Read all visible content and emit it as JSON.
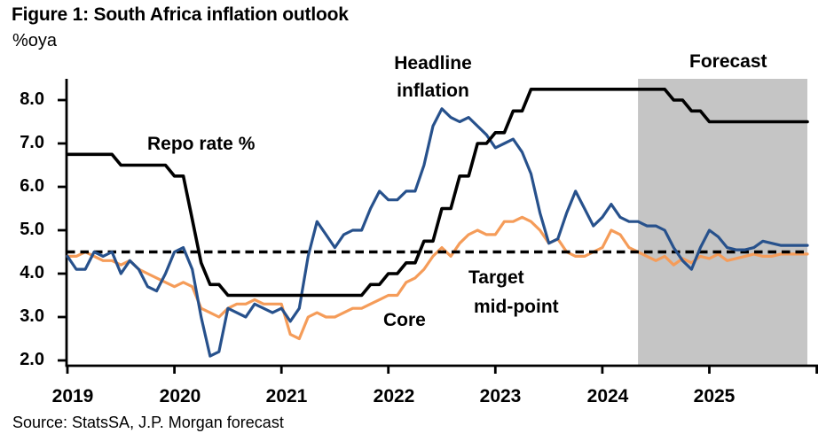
{
  "figure": {
    "title": "Figure 1: South Africa inflation outlook",
    "unit_label": "%oya",
    "source": "Source: StatsSA, J.P. Morgan forecast"
  },
  "chart_data": {
    "type": "line",
    "title": "Figure 1: South Africa inflation outlook",
    "ylabel": "%oya",
    "xlabel": "",
    "ylim": [
      1.9,
      8.5
    ],
    "y_ticks": [
      2.0,
      3.0,
      4.0,
      5.0,
      6.0,
      7.0,
      8.0
    ],
    "y_tick_labels": [
      "2.0",
      "3.0",
      "4.0",
      "5.0",
      "6.0",
      "7.0",
      "8.0"
    ],
    "x_start": "2019-01",
    "x_freq": "monthly",
    "x_tick_labels": [
      "2019",
      "2020",
      "2021",
      "2022",
      "2023",
      "2024",
      "2025"
    ],
    "grid": "off",
    "legend_position": "inline-annotations",
    "target_midpoint": 4.5,
    "forecast": {
      "label": "Forecast",
      "start_index": 64,
      "end_index": 83
    },
    "colors": {
      "repo": "#000000",
      "headline": "#27518C",
      "core": "#F59C59",
      "forecast_band": "#C5C5C5",
      "target_line": "#000000",
      "axis": "#000000"
    },
    "series": [
      {
        "name": "Repo rate %",
        "color": "#000000",
        "values": [
          6.75,
          6.75,
          6.75,
          6.75,
          6.75,
          6.75,
          6.5,
          6.5,
          6.5,
          6.5,
          6.5,
          6.5,
          6.25,
          6.25,
          5.25,
          4.25,
          3.75,
          3.75,
          3.5,
          3.5,
          3.5,
          3.5,
          3.5,
          3.5,
          3.5,
          3.5,
          3.5,
          3.5,
          3.5,
          3.5,
          3.5,
          3.5,
          3.5,
          3.5,
          3.75,
          3.75,
          4.0,
          4.0,
          4.25,
          4.25,
          4.75,
          4.75,
          5.5,
          5.5,
          6.25,
          6.25,
          7.0,
          7.0,
          7.25,
          7.25,
          7.75,
          7.75,
          8.25,
          8.25,
          8.25,
          8.25,
          8.25,
          8.25,
          8.25,
          8.25,
          8.25,
          8.25,
          8.25,
          8.25,
          8.25,
          8.25,
          8.25,
          8.25,
          8.0,
          8.0,
          7.75,
          7.75,
          7.5,
          7.5,
          7.5,
          7.5,
          7.5,
          7.5,
          7.5,
          7.5,
          7.5,
          7.5,
          7.5,
          7.5
        ]
      },
      {
        "name": "Headline inflation",
        "color": "#27518C",
        "values": [
          4.4,
          4.1,
          4.1,
          4.5,
          4.4,
          4.5,
          4.0,
          4.3,
          4.1,
          3.7,
          3.6,
          4.0,
          4.5,
          4.6,
          4.1,
          3.0,
          2.1,
          2.2,
          3.2,
          3.1,
          3.0,
          3.3,
          3.2,
          3.1,
          3.2,
          2.9,
          3.2,
          4.4,
          5.2,
          4.9,
          4.6,
          4.9,
          5.0,
          5.0,
          5.5,
          5.9,
          5.7,
          5.7,
          5.9,
          5.9,
          6.5,
          7.4,
          7.8,
          7.6,
          7.5,
          7.6,
          7.4,
          7.2,
          6.9,
          7.0,
          7.1,
          6.8,
          6.3,
          5.4,
          4.7,
          4.8,
          5.4,
          5.9,
          5.5,
          5.1,
          5.3,
          5.6,
          5.3,
          5.2,
          5.2,
          5.1,
          5.1,
          5.0,
          4.6,
          4.3,
          4.1,
          4.6,
          5.0,
          4.85,
          4.6,
          4.55,
          4.55,
          4.6,
          4.75,
          4.7,
          4.65,
          4.65,
          4.65,
          4.65
        ]
      },
      {
        "name": "Core",
        "color": "#F59C59",
        "values": [
          4.4,
          4.4,
          4.5,
          4.4,
          4.3,
          4.3,
          4.2,
          4.3,
          4.1,
          4.0,
          3.9,
          3.8,
          3.7,
          3.8,
          3.7,
          3.2,
          3.1,
          3.0,
          3.2,
          3.3,
          3.3,
          3.4,
          3.3,
          3.3,
          3.3,
          2.6,
          2.5,
          3.0,
          3.1,
          3.0,
          3.0,
          3.1,
          3.2,
          3.2,
          3.3,
          3.4,
          3.5,
          3.5,
          3.8,
          3.9,
          4.1,
          4.4,
          4.6,
          4.4,
          4.7,
          4.9,
          5.0,
          4.9,
          4.9,
          5.2,
          5.2,
          5.3,
          5.2,
          5.0,
          4.7,
          4.8,
          4.5,
          4.4,
          4.4,
          4.5,
          4.6,
          5.0,
          4.9,
          4.6,
          4.5,
          4.4,
          4.3,
          4.4,
          4.2,
          4.35,
          4.25,
          4.4,
          4.35,
          4.45,
          4.3,
          4.35,
          4.4,
          4.45,
          4.4,
          4.4,
          4.45,
          4.45,
          4.45,
          4.45
        ]
      }
    ],
    "annotations": {
      "repo_label": "Repo rate %",
      "headline_label_line1": "Headline",
      "headline_label_line2": "inflation",
      "core_label": "Core",
      "target_label_line1": "Target",
      "target_label_line2": "mid-point",
      "forecast_label": "Forecast"
    }
  }
}
